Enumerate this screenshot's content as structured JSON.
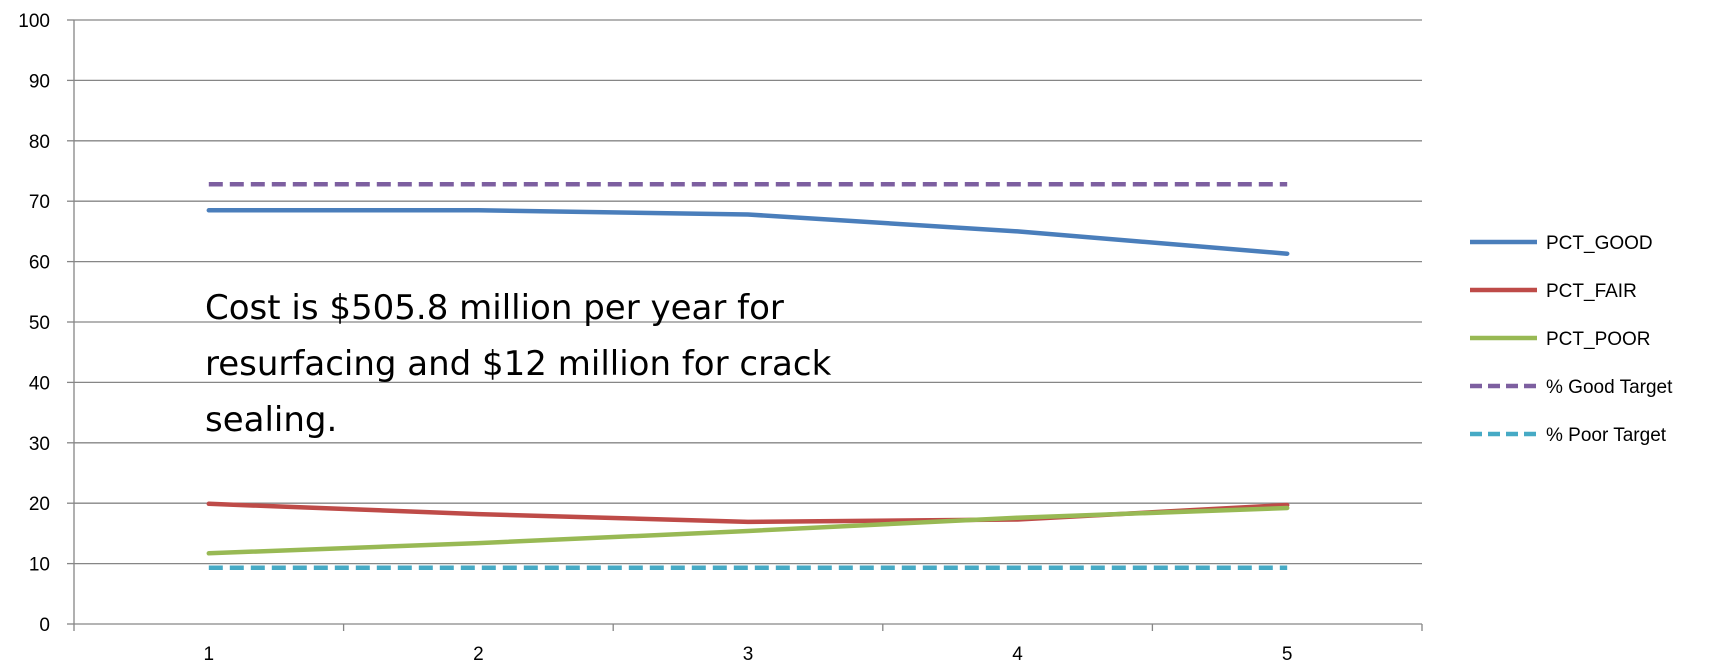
{
  "chart_data": {
    "type": "line",
    "x": [
      1,
      2,
      3,
      4,
      5
    ],
    "xlim": [
      0.5,
      5.5
    ],
    "ylim": [
      0,
      100
    ],
    "yticks": [
      0,
      10,
      20,
      30,
      40,
      50,
      60,
      70,
      80,
      90,
      100
    ],
    "xticks": [
      1,
      2,
      3,
      4,
      5
    ],
    "grid": true,
    "legend_position": "right",
    "annotation_lines": [
      "Cost is $505.8 million per year for",
      "resurfacing and $12 million for crack",
      "sealing."
    ],
    "series": [
      {
        "name": "PCT_GOOD",
        "values": [
          68.5,
          68.5,
          67.8,
          65.0,
          61.3
        ],
        "color": "#4A7EBB",
        "dash": "solid"
      },
      {
        "name": "PCT_FAIR",
        "values": [
          19.9,
          18.2,
          16.9,
          17.3,
          19.7
        ],
        "color": "#BE4B48",
        "dash": "solid"
      },
      {
        "name": "PCT_POOR",
        "values": [
          11.7,
          13.4,
          15.4,
          17.6,
          19.2
        ],
        "color": "#98B954",
        "dash": "solid"
      },
      {
        "name": "% Good Target",
        "values": [
          72.8,
          72.8,
          72.8,
          72.8,
          72.8
        ],
        "color": "#7D5FA0",
        "dash": "dashed"
      },
      {
        "name": "% Poor Target",
        "values": [
          9.3,
          9.3,
          9.3,
          9.3,
          9.3
        ],
        "color": "#46AAC5",
        "dash": "dashed"
      }
    ]
  }
}
